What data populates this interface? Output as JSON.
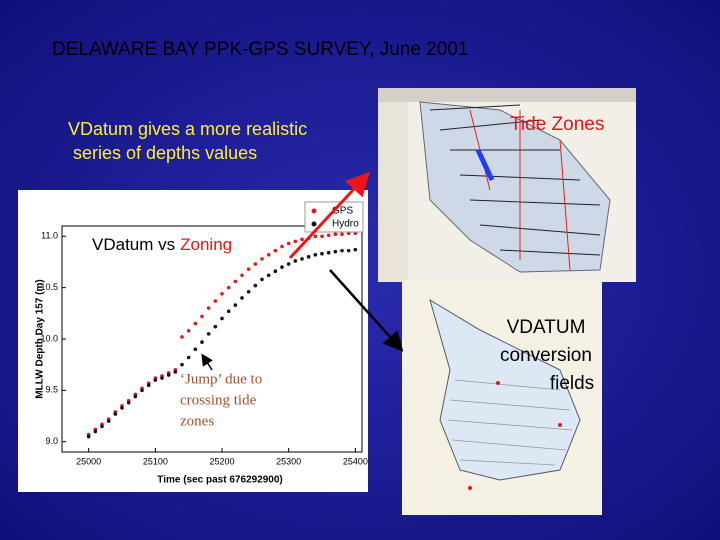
{
  "title": "DELAWARE BAY PPK-GPS SURVEY,  June 2001",
  "subtitle_lines": [
    "VDatum gives a more realistic",
    " series of depths values"
  ],
  "tide_zones_label": "Tide Zones",
  "vdatum_label_lines": [
    "VDATUM",
    "conversion",
    "fields"
  ],
  "chart_data": {
    "type": "scatter",
    "heading": "VDatum vs",
    "heading_highlight": "Zoning",
    "note_lines": [
      "‘Jump’ due to",
      "crossing tide",
      "zones"
    ],
    "x_label": "Time  (sec past 676292900)",
    "y_label": "MLLW Depth Day 157  (m)",
    "xlim": [
      24960,
      25410
    ],
    "ylim": [
      8.9,
      11.1
    ],
    "xticks": [
      25000,
      25100,
      25200,
      25300,
      25400
    ],
    "yticks": [
      {
        "value": 9,
        "label": "9.0"
      },
      9.5,
      {
        "value": 10,
        "label": "10.0"
      },
      10.5,
      {
        "value": 11,
        "label": "11.0"
      }
    ],
    "x": [
      25000,
      25010,
      25020,
      25030,
      25040,
      25050,
      25060,
      25070,
      25080,
      25090,
      25100,
      25110,
      25120,
      25130,
      25140,
      25150,
      25160,
      25170,
      25180,
      25190,
      25200,
      25210,
      25220,
      25230,
      25240,
      25250,
      25260,
      25270,
      25280,
      25290,
      25300,
      25310,
      25320,
      25330,
      25340,
      25350,
      25360,
      25370,
      25380,
      25390,
      25400
    ],
    "series": [
      {
        "name": "GPS",
        "color": "#e8161b",
        "values": [
          9.07,
          9.12,
          9.17,
          9.22,
          9.29,
          9.35,
          9.4,
          9.46,
          9.52,
          9.57,
          9.62,
          9.64,
          9.67,
          9.7,
          10.02,
          10.08,
          10.15,
          10.22,
          10.3,
          10.37,
          10.44,
          10.5,
          10.56,
          10.62,
          10.68,
          10.73,
          10.78,
          10.82,
          10.86,
          10.9,
          10.93,
          10.95,
          10.97,
          10.98,
          11.0,
          11.0,
          11.01,
          11.02,
          11.02,
          11.03,
          11.03
        ]
      },
      {
        "name": "Hydro",
        "color": "#111111",
        "values": [
          9.05,
          9.1,
          9.15,
          9.2,
          9.27,
          9.33,
          9.38,
          9.44,
          9.5,
          9.55,
          9.6,
          9.62,
          9.65,
          9.68,
          9.75,
          9.82,
          9.9,
          9.97,
          10.05,
          10.12,
          10.2,
          10.27,
          10.33,
          10.4,
          10.46,
          10.52,
          10.58,
          10.62,
          10.66,
          10.7,
          10.73,
          10.76,
          10.78,
          10.8,
          10.82,
          10.83,
          10.84,
          10.85,
          10.86,
          10.86,
          10.87
        ]
      }
    ]
  }
}
